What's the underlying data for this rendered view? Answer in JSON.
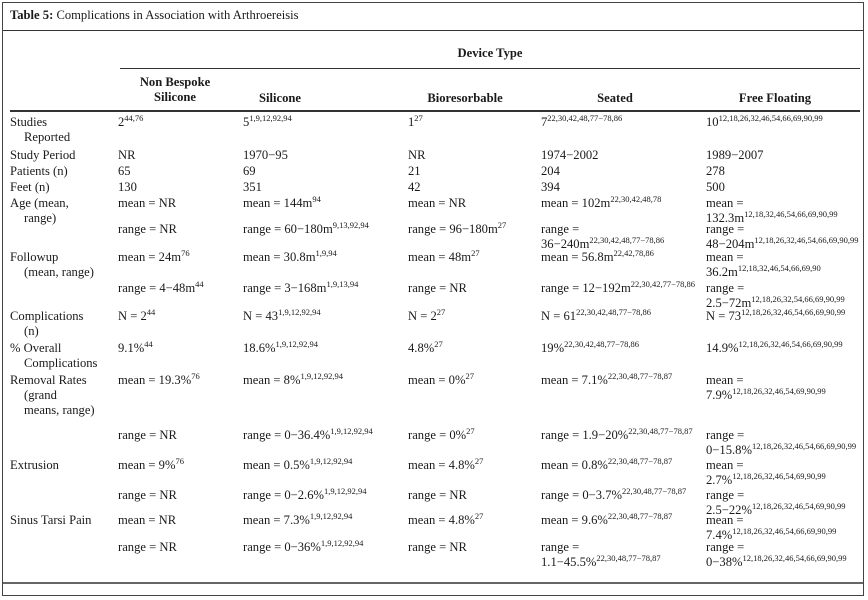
{
  "table": {
    "label": "Table 5:",
    "caption": "Complications in Association with Arthroereisis",
    "spanner": "Device Type",
    "columns": [
      "Non Bespoke Silicone",
      "Silicone",
      "Bioresorbable",
      "Seated",
      "Free Floating"
    ],
    "rows": [
      {
        "label": [
          "Studies",
          "Reported"
        ],
        "cells": [
          [
            "2",
            "44,76"
          ],
          [
            "5",
            "1,9,12,92,94"
          ],
          [
            "1",
            "27"
          ],
          [
            "7",
            "22,30,42,48,77−78,86"
          ],
          [
            "10",
            "12,18,26,32,46,54,66,69,90,99"
          ]
        ]
      },
      {
        "label": [
          "Study Period"
        ],
        "cells": [
          [
            "NR",
            ""
          ],
          [
            "1970−95",
            ""
          ],
          [
            "NR",
            ""
          ],
          [
            "1974−2002",
            ""
          ],
          [
            "1989−2007",
            ""
          ]
        ]
      },
      {
        "label": [
          "Patients (n)"
        ],
        "cells": [
          [
            "65",
            ""
          ],
          [
            "69",
            ""
          ],
          [
            "21",
            ""
          ],
          [
            "204",
            ""
          ],
          [
            "278",
            ""
          ]
        ]
      },
      {
        "label": [
          "Feet (n)"
        ],
        "cells": [
          [
            "130",
            ""
          ],
          [
            "351",
            ""
          ],
          [
            "42",
            ""
          ],
          [
            "394",
            ""
          ],
          [
            "500",
            ""
          ]
        ]
      },
      {
        "label": [
          "Age (mean,",
          "range)"
        ],
        "cells": [
          [
            "mean = NR",
            ""
          ],
          [
            "mean = 144m",
            "94"
          ],
          [
            "mean = NR",
            ""
          ],
          [
            "mean = 102m",
            "22,30,42,48,78"
          ],
          [
            "mean = 132.3m",
            "12,18,32,46,54,66,69,90,99"
          ]
        ]
      },
      {
        "label": [],
        "cells": [
          [
            "range = NR",
            ""
          ],
          [
            "range = 60−180m",
            "9,13,92,94"
          ],
          [
            "range = 96−180m",
            "27"
          ],
          [
            "range = 36−240m",
            "22,30,42,48,77−78,86"
          ],
          [
            "range = 48−204m",
            "12,18,26,32,46,54,66,69,90,99"
          ]
        ]
      },
      {
        "label": [
          "Followup",
          "(mean, range)"
        ],
        "cells": [
          [
            "mean = 24m",
            "76"
          ],
          [
            "mean = 30.8m",
            "1,9,94"
          ],
          [
            "mean = 48m",
            "27"
          ],
          [
            "mean = 56.8m",
            "22,42,78,86"
          ],
          [
            "mean = 36.2m",
            "12,18,32,46,54,66,69,90"
          ]
        ]
      },
      {
        "label": [],
        "cells": [
          [
            "range = 4−48m",
            "44"
          ],
          [
            "range = 3−168m",
            "1,9,13,94"
          ],
          [
            "range = NR",
            ""
          ],
          [
            "range = 12−192m",
            "22,30,42,77−78,86"
          ],
          [
            "range = 2.5−72m",
            "12,18,26,32,54,66,69,90,99"
          ]
        ]
      },
      {
        "label": [
          "Complications",
          "(n)"
        ],
        "cells": [
          [
            "N = 2",
            "44"
          ],
          [
            "N = 43",
            "1,9,12,92,94"
          ],
          [
            "N = 2",
            "27"
          ],
          [
            "N = 61",
            "22,30,42,48,77−78,86"
          ],
          [
            "N = 73",
            "12,18,26,32,46,54,66,69,90,99"
          ]
        ]
      },
      {
        "label": [
          "% Overall",
          "Complications"
        ],
        "cells": [
          [
            "9.1%",
            "44"
          ],
          [
            "18.6%",
            "1,9,12,92,94"
          ],
          [
            "4.8%",
            "27"
          ],
          [
            "19%",
            "22,30,42,48,77−78,86"
          ],
          [
            "14.9%",
            "12,18,26,32,46,54,66,69,90,99"
          ]
        ]
      },
      {
        "label": [
          "Removal Rates",
          "(grand",
          "means, range)"
        ],
        "cells": [
          [
            "mean = 19.3%",
            "76"
          ],
          [
            "mean = 8%",
            "1,9,12,92,94"
          ],
          [
            "mean = 0%",
            "27"
          ],
          [
            "mean = 7.1%",
            "22,30,48,77−78,87"
          ],
          [
            "mean = 7.9%",
            "12,18,26,32,46,54,69,90,99"
          ]
        ]
      },
      {
        "label": [],
        "cells": [
          [
            "range = NR",
            ""
          ],
          [
            "range = 0−36.4%",
            "1,9,12,92,94"
          ],
          [
            "range = 0%",
            "27"
          ],
          [
            "range = 1.9−20%",
            "22,30,48,77−78,87"
          ],
          [
            "range = 0−15.8%",
            "12,18,26,32,46,54,66,69,90,99"
          ]
        ]
      },
      {
        "label": [
          "Extrusion"
        ],
        "cells": [
          [
            "mean = 9%",
            "76"
          ],
          [
            "mean = 0.5%",
            "1,9,12,92,94"
          ],
          [
            "mean = 4.8%",
            "27"
          ],
          [
            "mean = 0.8%",
            "22,30,48,77−78,87"
          ],
          [
            "mean = 2.7%",
            "12,18,26,32,46,54,69,90,99"
          ]
        ]
      },
      {
        "label": [],
        "cells": [
          [
            "range = NR",
            ""
          ],
          [
            "range = 0−2.6%",
            "1,9,12,92,94"
          ],
          [
            "range = NR",
            ""
          ],
          [
            "range = 0−3.7%",
            "22,30,48,77−78,87"
          ],
          [
            "range = 2.5−22%",
            "12,18,26,32,46,54,69,90,99"
          ]
        ]
      },
      {
        "label": [
          "Sinus Tarsi Pain"
        ],
        "cells": [
          [
            "mean = NR",
            ""
          ],
          [
            "mean = 7.3%",
            "1,9,12,92,94"
          ],
          [
            "mean = 4.8%",
            "27"
          ],
          [
            "mean = 9.6%",
            "22,30,48,77−78,87"
          ],
          [
            "mean = 7.4%",
            "12,18,26,32,46,54,66,69,90,99"
          ]
        ]
      },
      {
        "label": [],
        "cells": [
          [
            "range = NR",
            ""
          ],
          [
            "range = 0−36%",
            "1,9,12,92,94"
          ],
          [
            "range = NR",
            ""
          ],
          [
            "range = 1.1−45.5%",
            "22,30,48,77−78,87"
          ],
          [
            "range = 0−38%",
            "12,18,26,32,46,54,66,69,90,99"
          ]
        ]
      }
    ]
  }
}
